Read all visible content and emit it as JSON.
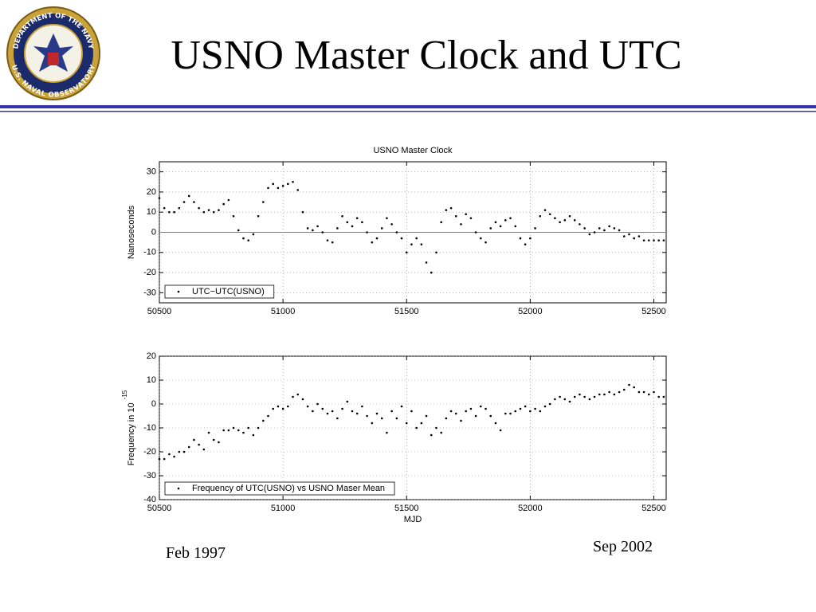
{
  "slide": {
    "title": "USNO Master Clock and UTC",
    "logo": {
      "top_text": "DEPARTMENT OF THE NAVY",
      "bottom_text": "U.S. NAVAL OBSERVATORY"
    },
    "start_note": "Feb 1997",
    "end_note": "Sep 2002"
  },
  "chart_data": [
    {
      "type": "scatter",
      "title": "USNO Master Clock",
      "ylabel": "Nanoseconds",
      "xlim": [
        50500,
        52550
      ],
      "xticks": [
        50500,
        51000,
        51500,
        52000,
        52500
      ],
      "ylim": [
        -35,
        35
      ],
      "yticks": [
        -30,
        -20,
        -10,
        0,
        10,
        20,
        30
      ],
      "grid": true,
      "legend": "lower left",
      "hline": 0,
      "hline_color": "#5577ee",
      "x": [
        50500,
        50520,
        50540,
        50560,
        50580,
        50600,
        50620,
        50640,
        50660,
        50680,
        50700,
        50720,
        50740,
        50760,
        50780,
        50800,
        50820,
        50840,
        50860,
        50880,
        50900,
        50920,
        50940,
        50960,
        50980,
        51000,
        51020,
        51040,
        51060,
        51080,
        51100,
        51120,
        51140,
        51160,
        51180,
        51200,
        51220,
        51240,
        51260,
        51280,
        51300,
        51320,
        51340,
        51360,
        51380,
        51400,
        51420,
        51440,
        51460,
        51480,
        51500,
        51520,
        51540,
        51560,
        51580,
        51600,
        51620,
        51640,
        51660,
        51680,
        51700,
        51720,
        51740,
        51760,
        51780,
        51800,
        51820,
        51840,
        51860,
        51880,
        51900,
        51920,
        51940,
        51960,
        51980,
        52000,
        52020,
        52040,
        52060,
        52080,
        52100,
        52120,
        52140,
        52160,
        52180,
        52200,
        52220,
        52240,
        52260,
        52280,
        52300,
        52320,
        52340,
        52360,
        52380,
        52400,
        52420,
        52440,
        52460,
        52480,
        52500,
        52520,
        52540
      ],
      "series": [
        {
          "name": "UTC−UTC(USNO)",
          "color": "#000000",
          "values": [
            17,
            12,
            10,
            10,
            12,
            15,
            18,
            15,
            12,
            10,
            11,
            10,
            11,
            14,
            16,
            8,
            1,
            -3,
            -4,
            -1,
            8,
            15,
            22,
            24,
            22,
            23,
            24,
            25,
            21,
            10,
            2,
            1,
            3,
            0,
            -4,
            -5,
            2,
            8,
            5,
            3,
            7,
            5,
            0,
            -5,
            -3,
            2,
            7,
            4,
            0,
            -3,
            -10,
            -6,
            -3,
            -6,
            -15,
            -20,
            -10,
            5,
            11,
            12,
            8,
            4,
            9,
            7,
            0,
            -3,
            -5,
            2,
            5,
            3,
            6,
            7,
            3,
            -3,
            -6,
            -3,
            2,
            8,
            11,
            9,
            7,
            5,
            6,
            8,
            6,
            4,
            2,
            -1,
            0,
            2,
            1,
            3,
            2,
            1,
            -2,
            -1,
            -3,
            -2,
            -4,
            -4,
            -4,
            -4,
            -4
          ]
        }
      ]
    },
    {
      "type": "scatter",
      "xlabel": "MJD",
      "ylabel": "Frequency in 10",
      "ylabel_exponent": "-15",
      "xlim": [
        50500,
        52550
      ],
      "xticks": [
        50500,
        51000,
        51500,
        52000,
        52500
      ],
      "ylim": [
        -40,
        20
      ],
      "yticks": [
        -40,
        -30,
        -20,
        -10,
        0,
        10,
        20
      ],
      "grid": true,
      "legend": "lower left",
      "x": [
        50500,
        50520,
        50540,
        50560,
        50580,
        50600,
        50620,
        50640,
        50660,
        50680,
        50700,
        50720,
        50740,
        50760,
        50780,
        50800,
        50820,
        50840,
        50860,
        50880,
        50900,
        50920,
        50940,
        50960,
        50980,
        51000,
        51020,
        51040,
        51060,
        51080,
        51100,
        51120,
        51140,
        51160,
        51180,
        51200,
        51220,
        51240,
        51260,
        51280,
        51300,
        51320,
        51340,
        51360,
        51380,
        51400,
        51420,
        51440,
        51460,
        51480,
        51500,
        51520,
        51540,
        51560,
        51580,
        51600,
        51620,
        51640,
        51660,
        51680,
        51700,
        51720,
        51740,
        51760,
        51780,
        51800,
        51820,
        51840,
        51860,
        51880,
        51900,
        51920,
        51940,
        51960,
        51980,
        52000,
        52020,
        52040,
        52060,
        52080,
        52100,
        52120,
        52140,
        52160,
        52180,
        52200,
        52220,
        52240,
        52260,
        52280,
        52300,
        52320,
        52340,
        52360,
        52380,
        52400,
        52420,
        52440,
        52460,
        52480,
        52500,
        52520,
        52540
      ],
      "series": [
        {
          "name": "Frequency of UTC(USNO) vs USNO Maser Mean",
          "color": "#000000",
          "values": [
            -23,
            -23,
            -21,
            -22,
            -20,
            -20,
            -18,
            -15,
            -17,
            -19,
            -12,
            -15,
            -16,
            -11,
            -11,
            -10,
            -11,
            -12,
            -10,
            -13,
            -10,
            -7,
            -5,
            -2,
            -1,
            -2,
            -1,
            3,
            4,
            2,
            -1,
            -3,
            0,
            -2,
            -4,
            -3,
            -6,
            -2,
            1,
            -3,
            -4,
            -1,
            -5,
            -8,
            -4,
            -6,
            -12,
            -3,
            -6,
            -1,
            -8,
            -3,
            -10,
            -8,
            -5,
            -13,
            -10,
            -12,
            -6,
            -3,
            -4,
            -7,
            -3,
            -2,
            -5,
            -1,
            -2,
            -5,
            -8,
            -11,
            -4,
            -4,
            -3,
            -2,
            -1,
            -3,
            -2,
            -3,
            -1,
            0,
            2,
            3,
            2,
            1,
            3,
            4,
            3,
            2,
            3,
            4,
            4,
            5,
            4,
            5,
            6,
            8,
            7,
            5,
            5,
            4,
            5,
            3,
            3
          ]
        }
      ]
    }
  ]
}
